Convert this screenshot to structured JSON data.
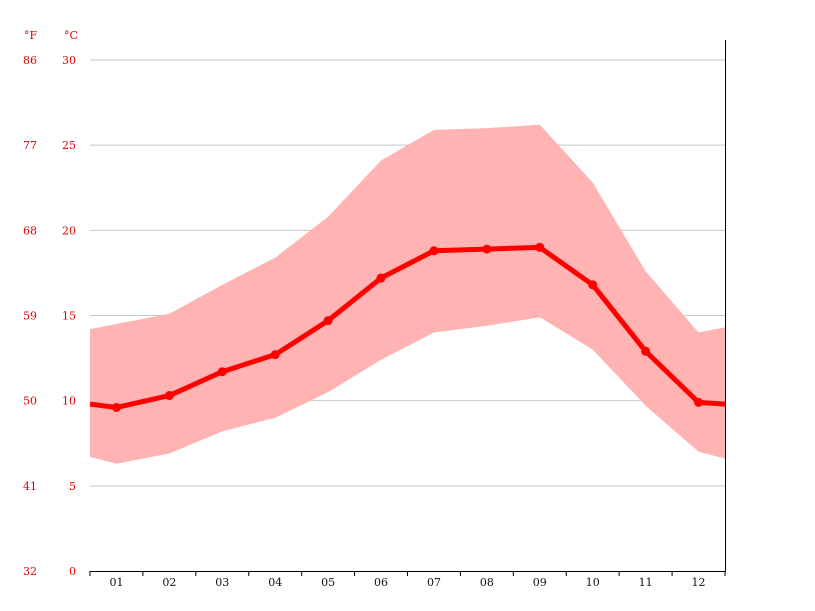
{
  "chart_data": {
    "type": "line",
    "title": "",
    "xlabel": "",
    "ylabel": "",
    "units": {
      "fahrenheit": "°F",
      "celsius": "°C"
    },
    "categories": [
      "01",
      "02",
      "03",
      "04",
      "05",
      "06",
      "07",
      "08",
      "09",
      "10",
      "11",
      "12"
    ],
    "series": [
      {
        "values": [
          9.6,
          10.3,
          11.7,
          12.7,
          14.7,
          17.2,
          18.8,
          18.9,
          19.0,
          16.8,
          12.9,
          9.9
        ],
        "color": "#ff0000"
      }
    ],
    "range_band": {
      "upper": [
        14.5,
        15.1,
        16.8,
        18.4,
        20.8,
        24.1,
        25.9,
        26.0,
        26.2,
        22.8,
        17.6,
        14.0
      ],
      "lower": [
        6.3,
        6.9,
        8.2,
        9.0,
        10.5,
        12.4,
        14.0,
        14.4,
        14.9,
        13.0,
        9.7,
        7.0
      ],
      "color": "#ffb3b3"
    },
    "edge_values": {
      "start": {
        "mean": 9.8,
        "upper": 14.2,
        "lower": 6.7
      },
      "end": {
        "mean": 9.8,
        "upper": 14.3,
        "lower": 6.6
      }
    },
    "yticks_c": [
      "0",
      "5",
      "10",
      "15",
      "20",
      "25",
      "30"
    ],
    "yticks_f": [
      "32",
      "41",
      "50",
      "59",
      "68",
      "77",
      "86"
    ],
    "ylim": [
      0,
      30
    ],
    "grid": true,
    "legend": "none"
  }
}
